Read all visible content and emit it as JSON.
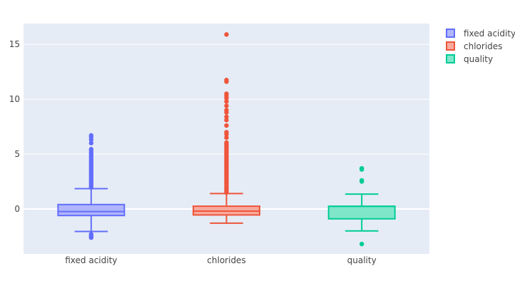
{
  "chart_data": {
    "type": "box",
    "categories": [
      "fixed acidity",
      "chlorides",
      "quality"
    ],
    "ylim": [
      -4.1,
      16.9
    ],
    "yticks": [
      0,
      5,
      10,
      15
    ],
    "grid": true,
    "legend_position": "top-right",
    "plot_bgcolor": "#E5ECF6",
    "series": [
      {
        "name": "fixed acidity",
        "color": "#636EFA",
        "fill": "#B1B6FC",
        "q1": -0.6,
        "median": -0.24,
        "q3": 0.4,
        "whisker_low": -2.05,
        "whisker_high": 1.85,
        "outliers": [
          -2.3,
          -2.45,
          -2.55,
          -2.62,
          1.95,
          2.05,
          2.15,
          2.3,
          2.45,
          2.6,
          2.75,
          2.9,
          3.05,
          3.2,
          3.35,
          3.5,
          3.65,
          3.8,
          3.95,
          4.1,
          4.25,
          4.4,
          4.55,
          4.7,
          4.85,
          5.0,
          5.15,
          5.3,
          5.45,
          6.0,
          6.3,
          6.55,
          6.7
        ]
      },
      {
        "name": "chlorides",
        "color": "#EF553B",
        "fill": "#F7AA9D",
        "q1": -0.55,
        "median": -0.2,
        "q3": 0.25,
        "whisker_low": -1.3,
        "whisker_high": 1.4,
        "outliers": [
          1.5,
          1.6,
          1.7,
          1.85,
          2.0,
          2.15,
          2.3,
          2.45,
          2.6,
          2.75,
          2.9,
          3.05,
          3.2,
          3.35,
          3.5,
          3.65,
          3.8,
          3.95,
          4.1,
          4.25,
          4.4,
          4.55,
          4.7,
          4.85,
          5.0,
          5.15,
          5.3,
          5.45,
          5.6,
          5.75,
          5.9,
          6.05,
          6.5,
          6.8,
          7.0,
          7.6,
          8.1,
          8.4,
          8.8,
          9.0,
          9.4,
          9.8,
          10.1,
          10.3,
          10.5,
          11.6,
          11.75,
          15.9
        ]
      },
      {
        "name": "quality",
        "color": "#00CC96",
        "fill": "#80E6CA",
        "q1": -0.9,
        "median": 0.24,
        "q3": 0.24,
        "whisker_low": -2.0,
        "whisker_high": 1.35,
        "outliers": [
          -3.2,
          2.5,
          2.6,
          3.6,
          3.7
        ]
      }
    ]
  }
}
